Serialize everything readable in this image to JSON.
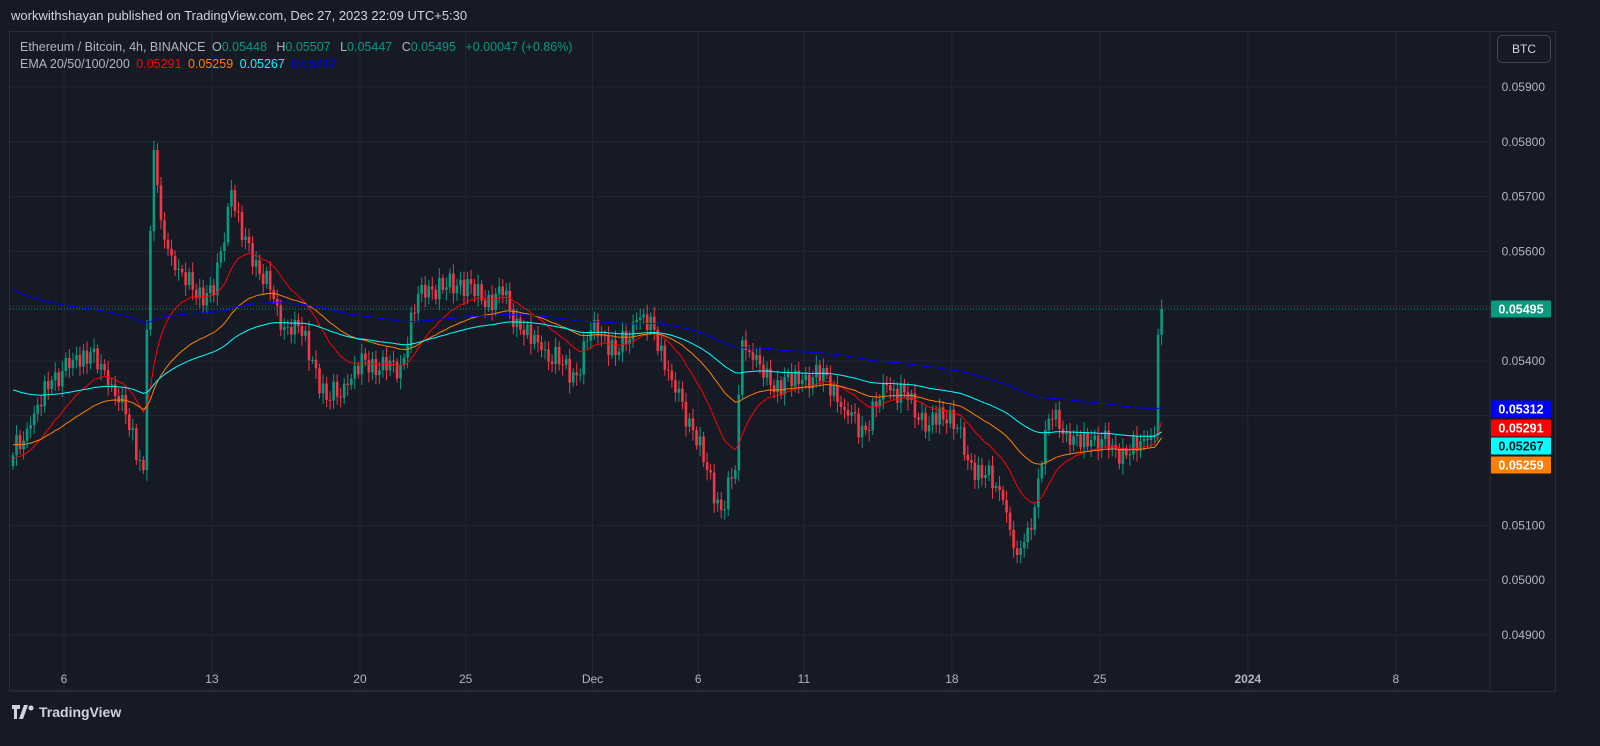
{
  "publisher_line": "workwithshayan published on TradingView.com, Dec 27, 2023 22:09 UTC+5:30",
  "legend": {
    "symbol": "Ethereum / Bitcoin, 4h, BINANCE",
    "o_label": "O",
    "o": "0.05448",
    "h_label": "H",
    "h": "0.05507",
    "l_label": "L",
    "l": "0.05447",
    "c_label": "C",
    "c": "0.05495",
    "change": "+0.00047 (+0.86%)",
    "ema_label": "EMA 20/50/100/200",
    "ema20": "0.05291",
    "ema50": "0.05259",
    "ema100": "0.05267",
    "ema200": "0.05312"
  },
  "unit_button": "BTC",
  "brand": "TradingView",
  "colors": {
    "up": "#089981",
    "down": "#f23645",
    "ema20": "#ff0000",
    "ema50": "#ff7f00",
    "ema100": "#00ffff",
    "ema200": "#0000ff",
    "background": "#161a25",
    "grid": "#232733"
  },
  "chart_data": {
    "type": "candlestick",
    "interval": "4h",
    "x_ticks": [
      "6",
      "13",
      "20",
      "25",
      "Dec",
      "6",
      "11",
      "18",
      "25",
      "2024",
      "8"
    ],
    "x_tick_dates": [
      "2023-11-06",
      "2023-11-13",
      "2023-11-20",
      "2023-11-25",
      "2023-12-01",
      "2023-12-06",
      "2023-12-11",
      "2023-12-18",
      "2023-12-25",
      "2024-01-01",
      "2024-01-08"
    ],
    "x_range": [
      "2023-11-03T12:00",
      "2024-01-12T00:00"
    ],
    "y_ticks": [
      "0.04900",
      "0.05000",
      "0.05100",
      "0.05400",
      "0.05600",
      "0.05700",
      "0.05800",
      "0.05900"
    ],
    "y_range": [
      0.0486,
      0.0597
    ],
    "grid": true,
    "last_price": "0.05495",
    "ema_badges": [
      {
        "name": "EMA 200",
        "value": "0.05312",
        "color": "#0000ff",
        "text": "#ffffff"
      },
      {
        "name": "EMA 20",
        "value": "0.05291",
        "color": "#ff0000",
        "text": "#ffffff"
      },
      {
        "name": "EMA 100",
        "value": "0.05267",
        "color": "#00ffff",
        "text": "#131722"
      },
      {
        "name": "EMA 50",
        "value": "0.05259",
        "color": "#ff7f00",
        "text": "#ffffff"
      }
    ],
    "ema_start": {
      "ema20": 0.0522,
      "ema50": 0.05247,
      "ema100": 0.05347,
      "ema200": 0.0553
    },
    "close_path": [
      [
        "2023-11-03T12:00",
        0.05228
      ],
      [
        "2023-11-04T08:00",
        0.05283
      ],
      [
        "2023-11-05T08:00",
        0.05365
      ],
      [
        "2023-11-06T08:00",
        0.05402
      ],
      [
        "2023-11-07T04:00",
        0.05416
      ],
      [
        "2023-11-08T00:00",
        0.05356
      ],
      [
        "2023-11-08T16:00",
        0.05338
      ],
      [
        "2023-11-09T00:00",
        0.05274
      ],
      [
        "2023-11-09T16:00",
        0.05201
      ],
      [
        "2023-11-09T20:00",
        0.05457
      ],
      [
        "2023-11-10T04:00",
        0.05785
      ],
      [
        "2023-11-10T12:00",
        0.05657
      ],
      [
        "2023-11-11T04:00",
        0.05566
      ],
      [
        "2023-11-12T00:00",
        0.0553
      ],
      [
        "2023-11-13T00:00",
        0.0552
      ],
      [
        "2023-11-13T20:00",
        0.05712
      ],
      [
        "2023-11-14T08:00",
        0.05621
      ],
      [
        "2023-11-15T00:00",
        0.05584
      ],
      [
        "2023-11-15T16:00",
        0.0553
      ],
      [
        "2023-11-16T04:00",
        0.05457
      ],
      [
        "2023-11-16T20:00",
        0.05475
      ],
      [
        "2023-11-17T16:00",
        0.05402
      ],
      [
        "2023-11-18T08:00",
        0.05329
      ],
      [
        "2023-11-19T08:00",
        0.05356
      ],
      [
        "2023-11-20T04:00",
        0.05402
      ],
      [
        "2023-11-21T04:00",
        0.05383
      ],
      [
        "2023-11-21T20:00",
        0.05393
      ],
      [
        "2023-11-22T20:00",
        0.05539
      ],
      [
        "2023-11-23T20:00",
        0.0553
      ],
      [
        "2023-11-24T16:00",
        0.05548
      ],
      [
        "2023-11-25T16:00",
        0.05511
      ],
      [
        "2023-11-26T16:00",
        0.0552
      ],
      [
        "2023-11-27T12:00",
        0.05457
      ],
      [
        "2023-11-28T12:00",
        0.0542
      ],
      [
        "2023-11-29T12:00",
        0.05393
      ],
      [
        "2023-11-30T04:00",
        0.05374
      ],
      [
        "2023-12-01T00:00",
        0.05475
      ],
      [
        "2023-12-02T00:00",
        0.05411
      ],
      [
        "2023-12-03T00:00",
        0.05475
      ],
      [
        "2023-12-03T20:00",
        0.05457
      ],
      [
        "2023-12-04T16:00",
        0.05365
      ],
      [
        "2023-12-05T16:00",
        0.05274
      ],
      [
        "2023-12-06T08:00",
        0.05201
      ],
      [
        "2023-12-07T00:00",
        0.05128
      ],
      [
        "2023-12-07T16:00",
        0.05201
      ],
      [
        "2023-12-08T00:00",
        0.05438
      ],
      [
        "2023-12-08T12:00",
        0.05402
      ],
      [
        "2023-12-09T08:00",
        0.05356
      ],
      [
        "2023-12-10T20:00",
        0.05365
      ],
      [
        "2023-12-12T00:00",
        0.05374
      ],
      [
        "2023-12-12T20:00",
        0.05311
      ],
      [
        "2023-12-13T20:00",
        0.05274
      ],
      [
        "2023-12-14T20:00",
        0.05356
      ],
      [
        "2023-12-15T20:00",
        0.05329
      ],
      [
        "2023-12-16T20:00",
        0.05283
      ],
      [
        "2023-12-17T20:00",
        0.05311
      ],
      [
        "2023-12-18T16:00",
        0.05219
      ],
      [
        "2023-12-19T12:00",
        0.05192
      ],
      [
        "2023-12-20T08:00",
        0.05146
      ],
      [
        "2023-12-21T00:00",
        0.05046
      ],
      [
        "2023-12-21T16:00",
        0.05092
      ],
      [
        "2023-12-22T08:00",
        0.05274
      ],
      [
        "2023-12-22T20:00",
        0.05311
      ],
      [
        "2023-12-23T12:00",
        0.05247
      ],
      [
        "2023-12-24T12:00",
        0.05256
      ],
      [
        "2023-12-25T12:00",
        0.05247
      ],
      [
        "2023-12-26T04:00",
        0.05228
      ],
      [
        "2023-12-27T04:00",
        0.05256
      ],
      [
        "2023-12-27T12:00",
        0.05265
      ],
      [
        "2023-12-27T16:00",
        0.05448
      ],
      [
        "2023-12-27T20:00",
        0.05495
      ]
    ]
  }
}
